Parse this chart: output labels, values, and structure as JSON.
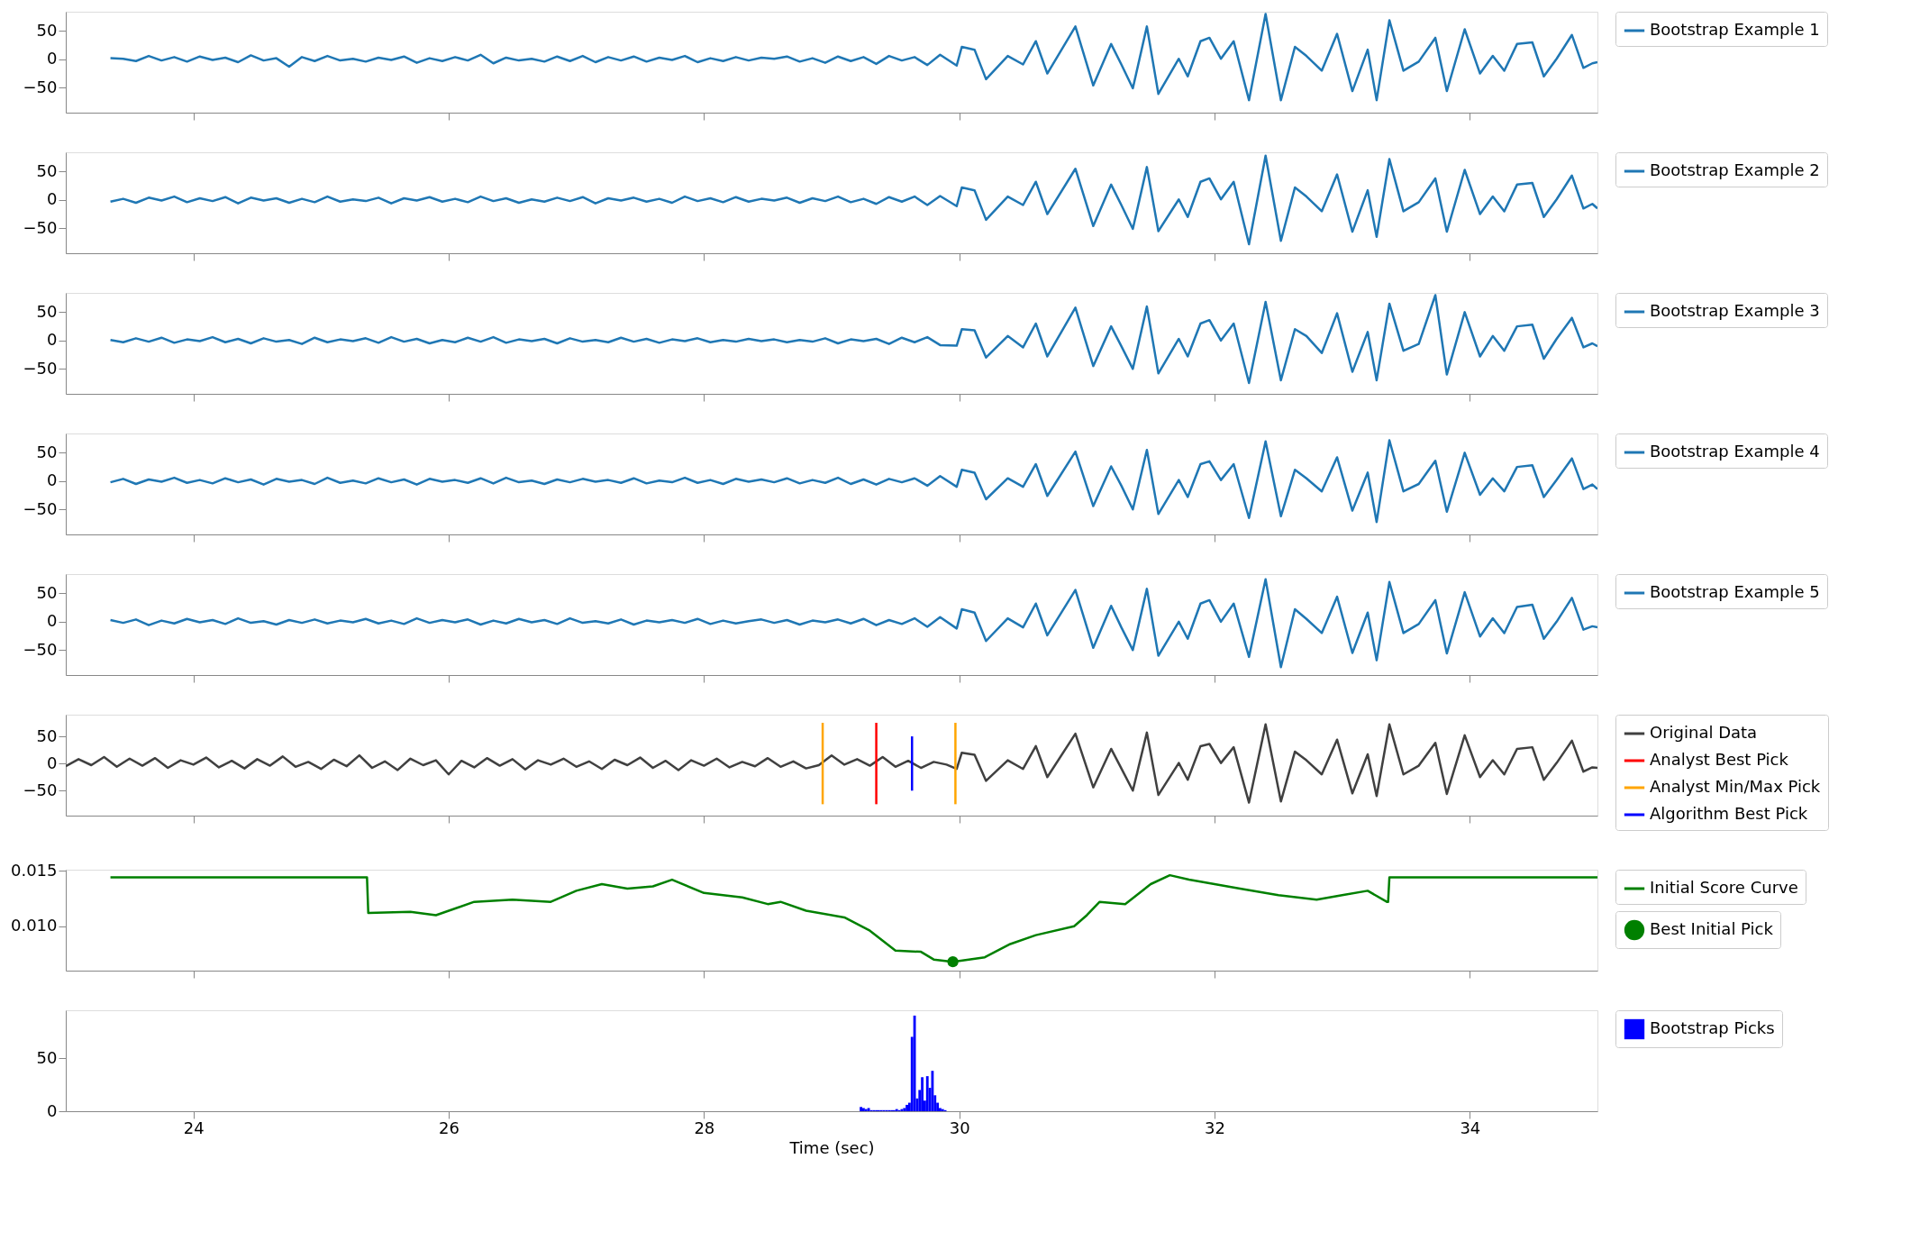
{
  "chart_data": [
    {
      "type": "line",
      "xlim": [
        23,
        35
      ],
      "xticks": [
        24,
        26,
        28,
        30,
        32,
        34
      ],
      "ylim": [
        -94,
        84
      ],
      "yticks": [
        -50,
        0,
        50
      ],
      "tick_labels": "y",
      "legend": "right",
      "grid": false,
      "series": [
        {
          "name": "Bootstrap Example 1",
          "color": "#1f77b4",
          "x": [
            23.35,
            23.45,
            23.55,
            23.65,
            23.75,
            23.85,
            23.95,
            24.05,
            24.15,
            24.25,
            24.35,
            24.45,
            24.55,
            24.65,
            24.75,
            24.85,
            24.95,
            25.05,
            25.15,
            25.25,
            25.35,
            25.45,
            25.55,
            25.65,
            25.75,
            25.85,
            25.95,
            26.05,
            26.15,
            26.25,
            26.35,
            26.45,
            26.55,
            26.65,
            26.75,
            26.85,
            26.95,
            27.05,
            27.15,
            27.25,
            27.35,
            27.45,
            27.55,
            27.65,
            27.75,
            27.85,
            27.95,
            28.05,
            28.15,
            28.25,
            28.35,
            28.45,
            28.55,
            28.65,
            28.75,
            28.85,
            28.95,
            29.05,
            29.15,
            29.25,
            29.35,
            29.45,
            29.55,
            29.65,
            29.75,
            29.85,
            29.98,
            30.02,
            30.12,
            30.21,
            30.38,
            30.5,
            30.6,
            30.69,
            30.91,
            31.05,
            31.19,
            31.27,
            31.36,
            31.47,
            31.56,
            31.72,
            31.79,
            31.89,
            31.96,
            32.05,
            32.15,
            32.27,
            32.4,
            32.52,
            32.63,
            32.72,
            32.84,
            32.96,
            33.08,
            33.2,
            33.27,
            33.37,
            33.48,
            33.6,
            33.73,
            33.82,
            33.96,
            34.08,
            34.18,
            34.27,
            34.37,
            34.49,
            34.58,
            34.68,
            34.8,
            34.89,
            34.96,
            35.0
          ],
          "values": [
            2,
            1,
            -3,
            6,
            -2,
            4,
            -4,
            5,
            -1,
            3,
            -5,
            7,
            -2,
            2,
            -13,
            4,
            -3,
            6,
            -2,
            1,
            -4,
            3,
            -1,
            5,
            -6,
            2,
            -3,
            4,
            -2,
            8,
            -7,
            3,
            -2,
            1,
            -4,
            5,
            -3,
            6,
            -5,
            4,
            -2,
            5,
            -4,
            3,
            -1,
            6,
            -5,
            2,
            -3,
            4,
            -2,
            3,
            1,
            5,
            -4,
            2,
            -6,
            5,
            -3,
            4,
            -8,
            6,
            -2,
            4,
            -10,
            8,
            -11,
            22,
            17,
            -35,
            6,
            -9,
            32,
            -25,
            58,
            -46,
            27,
            -9,
            -51,
            58,
            -61,
            1,
            -30,
            32,
            38,
            1,
            32,
            -72,
            80,
            -72,
            22,
            6,
            -20,
            45,
            -56,
            17,
            -72,
            69,
            -20,
            -4,
            38,
            -56,
            53,
            -25,
            6,
            -20,
            27,
            30,
            -30,
            1,
            43,
            -15,
            -7,
            -5
          ]
        }
      ]
    },
    {
      "type": "line",
      "xlim": [
        23,
        35
      ],
      "xticks": [
        24,
        26,
        28,
        30,
        32,
        34
      ],
      "ylim": [
        -94,
        84
      ],
      "yticks": [
        -50,
        0,
        50
      ],
      "tick_labels": "y",
      "legend": "right",
      "grid": false,
      "series": [
        {
          "name": "Bootstrap Example 2",
          "color": "#1f77b4",
          "x": [
            23.35,
            23.45,
            23.55,
            23.65,
            23.75,
            23.85,
            23.95,
            24.05,
            24.15,
            24.25,
            24.35,
            24.45,
            24.55,
            24.65,
            24.75,
            24.85,
            24.95,
            25.05,
            25.15,
            25.25,
            25.35,
            25.45,
            25.55,
            25.65,
            25.75,
            25.85,
            25.95,
            26.05,
            26.15,
            26.25,
            26.35,
            26.45,
            26.55,
            26.65,
            26.75,
            26.85,
            26.95,
            27.05,
            27.15,
            27.25,
            27.35,
            27.45,
            27.55,
            27.65,
            27.75,
            27.85,
            27.95,
            28.05,
            28.15,
            28.25,
            28.35,
            28.45,
            28.55,
            28.65,
            28.75,
            28.85,
            28.95,
            29.05,
            29.15,
            29.25,
            29.35,
            29.45,
            29.55,
            29.65,
            29.75,
            29.85,
            29.98,
            30.02,
            30.12,
            30.21,
            30.38,
            30.5,
            30.6,
            30.69,
            30.91,
            31.05,
            31.19,
            31.27,
            31.36,
            31.47,
            31.56,
            31.72,
            31.79,
            31.89,
            31.96,
            32.05,
            32.15,
            32.27,
            32.4,
            32.52,
            32.63,
            32.72,
            32.84,
            32.96,
            33.08,
            33.2,
            33.27,
            33.37,
            33.48,
            33.6,
            33.73,
            33.82,
            33.96,
            34.08,
            34.18,
            34.27,
            34.37,
            34.49,
            34.58,
            34.68,
            34.8,
            34.89,
            34.96,
            35.0
          ],
          "values": [
            -3,
            2,
            -5,
            4,
            -1,
            6,
            -4,
            3,
            -2,
            5,
            -6,
            4,
            -1,
            3,
            -5,
            2,
            -4,
            6,
            -3,
            1,
            -2,
            4,
            -6,
            3,
            -1,
            5,
            -3,
            2,
            -4,
            6,
            -2,
            3,
            -5,
            1,
            -3,
            4,
            -2,
            5,
            -6,
            3,
            -1,
            4,
            -3,
            2,
            -5,
            6,
            -2,
            3,
            -4,
            5,
            -3,
            2,
            -1,
            4,
            -5,
            3,
            -2,
            6,
            -4,
            2,
            -7,
            5,
            -3,
            6,
            -9,
            7,
            -11,
            22,
            17,
            -35,
            6,
            -9,
            32,
            -25,
            55,
            -46,
            27,
            -9,
            -51,
            58,
            -55,
            1,
            -30,
            32,
            38,
            1,
            32,
            -78,
            78,
            -72,
            22,
            6,
            -20,
            45,
            -56,
            17,
            -65,
            72,
            -20,
            -4,
            38,
            -56,
            53,
            -25,
            6,
            -20,
            27,
            30,
            -30,
            1,
            43,
            -15,
            -7,
            -15
          ]
        }
      ]
    },
    {
      "type": "line",
      "xlim": [
        23,
        35
      ],
      "xticks": [
        24,
        26,
        28,
        30,
        32,
        34
      ],
      "ylim": [
        -94,
        84
      ],
      "yticks": [
        -50,
        0,
        50
      ],
      "tick_labels": "y",
      "legend": "right",
      "grid": false,
      "series": [
        {
          "name": "Bootstrap Example 3",
          "color": "#1f77b4",
          "x": [
            23.35,
            23.45,
            23.55,
            23.65,
            23.75,
            23.85,
            23.95,
            24.05,
            24.15,
            24.25,
            24.35,
            24.45,
            24.55,
            24.65,
            24.75,
            24.85,
            24.95,
            25.05,
            25.15,
            25.25,
            25.35,
            25.45,
            25.55,
            25.65,
            25.75,
            25.85,
            25.95,
            26.05,
            26.15,
            26.25,
            26.35,
            26.45,
            26.55,
            26.65,
            26.75,
            26.85,
            26.95,
            27.05,
            27.15,
            27.25,
            27.35,
            27.45,
            27.55,
            27.65,
            27.75,
            27.85,
            27.95,
            28.05,
            28.15,
            28.25,
            28.35,
            28.45,
            28.55,
            28.65,
            28.75,
            28.85,
            28.95,
            29.05,
            29.15,
            29.25,
            29.35,
            29.45,
            29.55,
            29.65,
            29.75,
            29.85,
            29.98,
            30.02,
            30.12,
            30.21,
            30.38,
            30.5,
            30.6,
            30.69,
            30.91,
            31.05,
            31.19,
            31.27,
            31.36,
            31.47,
            31.56,
            31.72,
            31.79,
            31.89,
            31.96,
            32.05,
            32.15,
            32.27,
            32.4,
            32.52,
            32.63,
            32.72,
            32.84,
            32.96,
            33.08,
            33.2,
            33.27,
            33.37,
            33.48,
            33.6,
            33.73,
            33.82,
            33.96,
            34.08,
            34.18,
            34.27,
            34.37,
            34.49,
            34.58,
            34.68,
            34.8,
            34.89,
            34.96,
            35.0
          ],
          "values": [
            1,
            -3,
            4,
            -2,
            5,
            -4,
            2,
            -1,
            6,
            -3,
            3,
            -5,
            4,
            -2,
            1,
            -6,
            5,
            -3,
            2,
            -1,
            4,
            -4,
            6,
            -2,
            3,
            -5,
            1,
            -3,
            5,
            -2,
            6,
            -4,
            2,
            -1,
            3,
            -5,
            4,
            -2,
            1,
            -3,
            5,
            -2,
            3,
            -4,
            2,
            -1,
            4,
            -3,
            1,
            -2,
            3,
            -1,
            2,
            -3,
            1,
            -2,
            4,
            -5,
            2,
            -1,
            3,
            -6,
            5,
            -3,
            6,
            -8,
            -9,
            20,
            18,
            -30,
            8,
            -12,
            30,
            -28,
            58,
            -45,
            25,
            -10,
            -50,
            60,
            -58,
            3,
            -28,
            30,
            36,
            0,
            30,
            -75,
            68,
            -70,
            20,
            8,
            -22,
            48,
            -55,
            15,
            -70,
            65,
            -18,
            -6,
            80,
            -60,
            50,
            -28,
            8,
            -18,
            25,
            28,
            -32,
            3,
            40,
            -12,
            -5,
            -10
          ]
        }
      ]
    },
    {
      "type": "line",
      "xlim": [
        23,
        35
      ],
      "xticks": [
        24,
        26,
        28,
        30,
        32,
        34
      ],
      "ylim": [
        -94,
        84
      ],
      "yticks": [
        -50,
        0,
        50
      ],
      "tick_labels": "y",
      "legend": "right",
      "grid": false,
      "series": [
        {
          "name": "Bootstrap Example 4",
          "color": "#1f77b4",
          "x": [
            23.35,
            23.45,
            23.55,
            23.65,
            23.75,
            23.85,
            23.95,
            24.05,
            24.15,
            24.25,
            24.35,
            24.45,
            24.55,
            24.65,
            24.75,
            24.85,
            24.95,
            25.05,
            25.15,
            25.25,
            25.35,
            25.45,
            25.55,
            25.65,
            25.75,
            25.85,
            25.95,
            26.05,
            26.15,
            26.25,
            26.35,
            26.45,
            26.55,
            26.65,
            26.75,
            26.85,
            26.95,
            27.05,
            27.15,
            27.25,
            27.35,
            27.45,
            27.55,
            27.65,
            27.75,
            27.85,
            27.95,
            28.05,
            28.15,
            28.25,
            28.35,
            28.45,
            28.55,
            28.65,
            28.75,
            28.85,
            28.95,
            29.05,
            29.15,
            29.25,
            29.35,
            29.45,
            29.55,
            29.65,
            29.75,
            29.85,
            29.98,
            30.02,
            30.12,
            30.21,
            30.38,
            30.5,
            30.6,
            30.69,
            30.91,
            31.05,
            31.19,
            31.27,
            31.36,
            31.47,
            31.56,
            31.72,
            31.79,
            31.89,
            31.96,
            32.05,
            32.15,
            32.27,
            32.4,
            32.52,
            32.63,
            32.72,
            32.84,
            32.96,
            33.08,
            33.2,
            33.27,
            33.37,
            33.48,
            33.6,
            33.73,
            33.82,
            33.96,
            34.08,
            34.18,
            34.27,
            34.37,
            34.49,
            34.58,
            34.68,
            34.8,
            34.89,
            34.96,
            35.0
          ],
          "values": [
            -2,
            4,
            -5,
            3,
            -1,
            6,
            -3,
            2,
            -4,
            5,
            -2,
            3,
            -6,
            4,
            -1,
            2,
            -5,
            6,
            -3,
            1,
            -4,
            5,
            -2,
            3,
            -6,
            4,
            -1,
            2,
            -3,
            5,
            -4,
            6,
            -2,
            1,
            -5,
            3,
            -2,
            4,
            -1,
            2,
            -3,
            5,
            -4,
            1,
            -2,
            6,
            -3,
            2,
            -5,
            4,
            -1,
            3,
            -2,
            5,
            -4,
            2,
            -3,
            6,
            -5,
            3,
            -6,
            4,
            -2,
            5,
            -8,
            9,
            -10,
            20,
            15,
            -32,
            5,
            -10,
            30,
            -26,
            52,
            -44,
            26,
            -8,
            -50,
            55,
            -58,
            2,
            -28,
            30,
            35,
            2,
            30,
            -65,
            70,
            -62,
            20,
            5,
            -18,
            42,
            -52,
            15,
            -72,
            72,
            -18,
            -5,
            36,
            -54,
            50,
            -24,
            5,
            -18,
            25,
            28,
            -28,
            2,
            40,
            -14,
            -6,
            -14
          ]
        }
      ]
    },
    {
      "type": "line",
      "xlim": [
        23,
        35
      ],
      "xticks": [
        24,
        26,
        28,
        30,
        32,
        34
      ],
      "ylim": [
        -94,
        84
      ],
      "yticks": [
        -50,
        0,
        50
      ],
      "tick_labels": "y",
      "legend": "right",
      "grid": false,
      "series": [
        {
          "name": "Bootstrap Example 5",
          "color": "#1f77b4",
          "x": [
            23.35,
            23.45,
            23.55,
            23.65,
            23.75,
            23.85,
            23.95,
            24.05,
            24.15,
            24.25,
            24.35,
            24.45,
            24.55,
            24.65,
            24.75,
            24.85,
            24.95,
            25.05,
            25.15,
            25.25,
            25.35,
            25.45,
            25.55,
            25.65,
            25.75,
            25.85,
            25.95,
            26.05,
            26.15,
            26.25,
            26.35,
            26.45,
            26.55,
            26.65,
            26.75,
            26.85,
            26.95,
            27.05,
            27.15,
            27.25,
            27.35,
            27.45,
            27.55,
            27.65,
            27.75,
            27.85,
            27.95,
            28.05,
            28.15,
            28.25,
            28.35,
            28.45,
            28.55,
            28.65,
            28.75,
            28.85,
            28.95,
            29.05,
            29.15,
            29.25,
            29.35,
            29.45,
            29.55,
            29.65,
            29.75,
            29.85,
            29.98,
            30.02,
            30.12,
            30.21,
            30.38,
            30.5,
            30.6,
            30.69,
            30.91,
            31.05,
            31.19,
            31.27,
            31.36,
            31.47,
            31.56,
            31.72,
            31.79,
            31.89,
            31.96,
            32.05,
            32.15,
            32.27,
            32.4,
            32.52,
            32.63,
            32.72,
            32.84,
            32.96,
            33.08,
            33.2,
            33.27,
            33.37,
            33.48,
            33.6,
            33.73,
            33.82,
            33.96,
            34.08,
            34.18,
            34.27,
            34.37,
            34.49,
            34.58,
            34.68,
            34.8,
            34.89,
            34.96,
            35.0
          ],
          "values": [
            3,
            -2,
            4,
            -6,
            2,
            -3,
            5,
            -1,
            3,
            -4,
            6,
            -2,
            1,
            -5,
            3,
            -2,
            4,
            -3,
            2,
            -1,
            5,
            -3,
            2,
            -4,
            6,
            -2,
            3,
            -1,
            4,
            -5,
            2,
            -3,
            5,
            -1,
            3,
            -4,
            6,
            -2,
            1,
            -3,
            4,
            -5,
            2,
            -1,
            3,
            -2,
            5,
            -4,
            2,
            -3,
            1,
            4,
            -2,
            3,
            -5,
            2,
            -1,
            4,
            -3,
            5,
            -6,
            3,
            -4,
            6,
            -9,
            8,
            -12,
            22,
            16,
            -34,
            6,
            -10,
            32,
            -24,
            56,
            -46,
            28,
            -10,
            -50,
            58,
            -60,
            0,
            -30,
            32,
            38,
            0,
            32,
            -62,
            75,
            -80,
            22,
            5,
            -20,
            44,
            -55,
            16,
            -68,
            70,
            -20,
            -4,
            38,
            -56,
            52,
            -26,
            6,
            -20,
            26,
            30,
            -30,
            0,
            42,
            -14,
            -8,
            -10
          ]
        }
      ]
    },
    {
      "type": "line",
      "xlim": [
        23,
        35
      ],
      "xticks": [
        24,
        26,
        28,
        30,
        32,
        34
      ],
      "ylim": [
        -96,
        90
      ],
      "yticks": [
        -50,
        0,
        50
      ],
      "tick_labels": "y",
      "legend": "right",
      "grid": false,
      "series": [
        {
          "name": "Original Data",
          "color": "#404040",
          "x": [
            23.0,
            23.1,
            23.2,
            23.3,
            23.4,
            23.5,
            23.6,
            23.7,
            23.8,
            23.9,
            24.0,
            24.1,
            24.2,
            24.3,
            24.4,
            24.5,
            24.6,
            24.7,
            24.8,
            24.9,
            25.0,
            25.1,
            25.2,
            25.3,
            25.4,
            25.5,
            25.6,
            25.7,
            25.8,
            25.9,
            26.0,
            26.1,
            26.2,
            26.3,
            26.4,
            26.5,
            26.6,
            26.7,
            26.8,
            26.9,
            27.0,
            27.1,
            27.2,
            27.3,
            27.4,
            27.5,
            27.6,
            27.7,
            27.8,
            27.9,
            28.0,
            28.1,
            28.2,
            28.3,
            28.4,
            28.5,
            28.6,
            28.7,
            28.8,
            28.9,
            29.0,
            29.1,
            29.2,
            29.3,
            29.4,
            29.5,
            29.6,
            29.7,
            29.8,
            29.9,
            29.98,
            30.02,
            30.12,
            30.21,
            30.38,
            30.5,
            30.6,
            30.69,
            30.91,
            31.05,
            31.19,
            31.27,
            31.36,
            31.47,
            31.56,
            31.72,
            31.79,
            31.89,
            31.96,
            32.05,
            32.15,
            32.27,
            32.4,
            32.52,
            32.63,
            32.72,
            32.84,
            32.96,
            33.08,
            33.2,
            33.27,
            33.37,
            33.48,
            33.6,
            33.73,
            33.82,
            33.96,
            34.08,
            34.18,
            34.27,
            34.37,
            34.49,
            34.58,
            34.68,
            34.8,
            34.89,
            34.96,
            35.0
          ],
          "values": [
            -5,
            8,
            -3,
            12,
            -6,
            9,
            -4,
            10,
            -8,
            6,
            -2,
            11,
            -7,
            5,
            -9,
            8,
            -4,
            13,
            -6,
            3,
            -10,
            7,
            -5,
            15,
            -8,
            4,
            -12,
            9,
            -3,
            6,
            -20,
            5,
            -7,
            10,
            -4,
            8,
            -11,
            6,
            -2,
            9,
            -6,
            4,
            -10,
            7,
            -3,
            11,
            -8,
            5,
            -12,
            6,
            -4,
            9,
            -7,
            3,
            -5,
            10,
            -6,
            4,
            -9,
            -3,
            15,
            -2,
            8,
            -4,
            12,
            -6,
            5,
            -8,
            3,
            -2,
            -10,
            20,
            16,
            -32,
            6,
            -10,
            32,
            -25,
            55,
            -44,
            27,
            -9,
            -50,
            57,
            -58,
            1,
            -30,
            32,
            36,
            1,
            30,
            -72,
            72,
            -70,
            22,
            6,
            -20,
            44,
            -55,
            17,
            -60,
            72,
            -20,
            -4,
            38,
            -56,
            52,
            -25,
            6,
            -20,
            27,
            30,
            -30,
            1,
            42,
            -15,
            -7,
            -8
          ]
        },
        {
          "name": "Analyst Best Pick",
          "color": "#ff0000",
          "x": [
            29.35,
            29.35
          ],
          "values": [
            -75,
            75
          ]
        },
        {
          "name": "Analyst Min/Max Pick",
          "color": "#ffa500",
          "x": [
            28.93,
            28.93,
            29.45,
            29.97,
            29.97
          ],
          "values": [
            -75,
            75,
            null,
            75,
            -75
          ]
        },
        {
          "name": "Algorithm Best Pick",
          "color": "#0000ff",
          "x": [
            29.63,
            29.63
          ],
          "values": [
            -50,
            50
          ]
        }
      ]
    },
    {
      "type": "line",
      "xlim": [
        23,
        35
      ],
      "xticks": [
        24,
        26,
        28,
        30,
        32,
        34
      ],
      "ylim": [
        0.006,
        0.0151
      ],
      "yticks": [
        {
          "value": 0.01,
          "label": "0.010"
        },
        {
          "value": 0.015,
          "label": "0.015"
        }
      ],
      "tick_labels": "y",
      "legend": "right",
      "grid": false,
      "series": [
        {
          "name": "Initial Score Curve",
          "color": "#008000",
          "x": [
            23.35,
            25.36,
            25.37,
            25.7,
            25.9,
            26.2,
            26.5,
            26.8,
            27.0,
            27.2,
            27.4,
            27.6,
            27.75,
            28.0,
            28.3,
            28.5,
            28.6,
            28.8,
            29.1,
            29.3,
            29.5,
            29.7,
            29.8,
            29.95,
            30.2,
            30.4,
            30.6,
            30.9,
            31.0,
            31.1,
            31.3,
            31.5,
            31.65,
            31.8,
            32.0,
            32.2,
            32.5,
            32.8,
            33.0,
            33.2,
            33.35,
            33.36,
            33.37,
            35.0
          ],
          "values": [
            0.0144,
            0.0144,
            0.0112,
            0.0113,
            0.011,
            0.0122,
            0.0124,
            0.0122,
            0.0132,
            0.0138,
            0.0134,
            0.0136,
            0.0142,
            0.013,
            0.0126,
            0.012,
            0.0122,
            0.0114,
            0.0108,
            0.0096,
            0.0078,
            0.0077,
            0.007,
            0.0068,
            0.0072,
            0.0084,
            0.0092,
            0.01,
            0.011,
            0.0122,
            0.012,
            0.0138,
            0.0146,
            0.0142,
            0.0138,
            0.0134,
            0.0128,
            0.0124,
            0.0128,
            0.0132,
            0.0122,
            0.0122,
            0.0144,
            0.0144
          ]
        },
        {
          "name": "Best Initial Pick",
          "type": "scatter",
          "marker": "circle",
          "color": "#008000",
          "x": [
            29.95
          ],
          "values": [
            0.0068
          ]
        }
      ]
    },
    {
      "type": "histogram",
      "xlim": [
        23,
        35
      ],
      "xticks": [
        24,
        26,
        28,
        30,
        32,
        34
      ],
      "ylim": [
        0,
        95
      ],
      "yticks": [
        0,
        50
      ],
      "xlabel": "Time (sec)",
      "legend": "right",
      "grid": false,
      "bins": [
        29.2,
        29.22,
        29.24,
        29.26,
        29.28,
        29.3,
        29.32,
        29.34,
        29.36,
        29.38,
        29.4,
        29.42,
        29.44,
        29.46,
        29.48,
        29.5,
        29.52,
        29.54,
        29.56,
        29.58,
        29.6,
        29.62,
        29.64,
        29.66,
        29.68,
        29.7,
        29.72,
        29.74,
        29.76,
        29.78,
        29.8,
        29.82,
        29.84,
        29.86,
        29.88,
        29.9
      ],
      "series": [
        {
          "name": "Bootstrap Picks",
          "color": "#0000ff",
          "values": [
            0,
            4,
            3,
            2,
            3,
            1,
            1,
            1,
            1,
            1,
            1,
            1,
            1,
            1,
            1,
            2,
            1,
            2,
            3,
            6,
            8,
            70,
            90,
            12,
            20,
            32,
            10,
            33,
            22,
            38,
            15,
            8,
            3,
            2,
            1
          ]
        }
      ]
    }
  ]
}
